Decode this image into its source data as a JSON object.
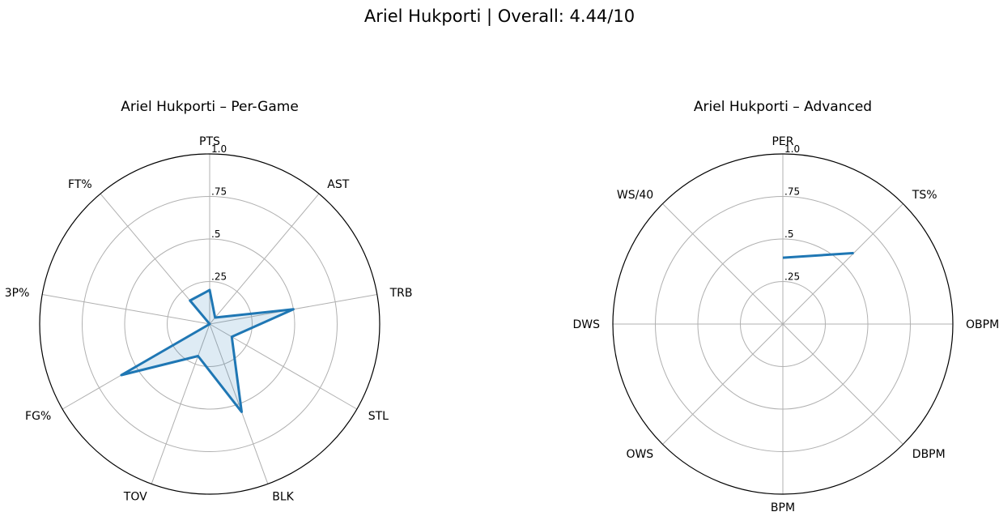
{
  "figure": {
    "title": "Ariel Hukporti | Overall: 4.44/10"
  },
  "chart_data": [
    {
      "type": "radar",
      "title": "Ariel Hukporti – Per-Game",
      "categories": [
        "PTS",
        "AST",
        "TRB",
        "STL",
        "BLK",
        "TOV",
        "FG%",
        "3P%",
        "FT%"
      ],
      "values": [
        0.2,
        0.05,
        0.5,
        0.15,
        0.55,
        0.2,
        0.6,
        0.0,
        0.18
      ],
      "rlim": [
        0,
        1.0
      ],
      "rticks": [
        ".25",
        ".5",
        ".75",
        "1.0"
      ],
      "fill": true,
      "color": "#1f77b4"
    },
    {
      "type": "radar",
      "title": "Ariel Hukporti – Advanced",
      "categories": [
        "PER",
        "TS%",
        "OBPM",
        "DBPM",
        "BPM",
        "OWS",
        "DWS",
        "WS/40"
      ],
      "values": [
        0.39,
        0.59,
        null,
        null,
        null,
        null,
        null,
        null
      ],
      "rlim": [
        0,
        1.0
      ],
      "rticks": [
        ".25",
        ".5",
        ".75",
        "1.0"
      ],
      "fill": false,
      "color": "#1f77b4"
    }
  ]
}
